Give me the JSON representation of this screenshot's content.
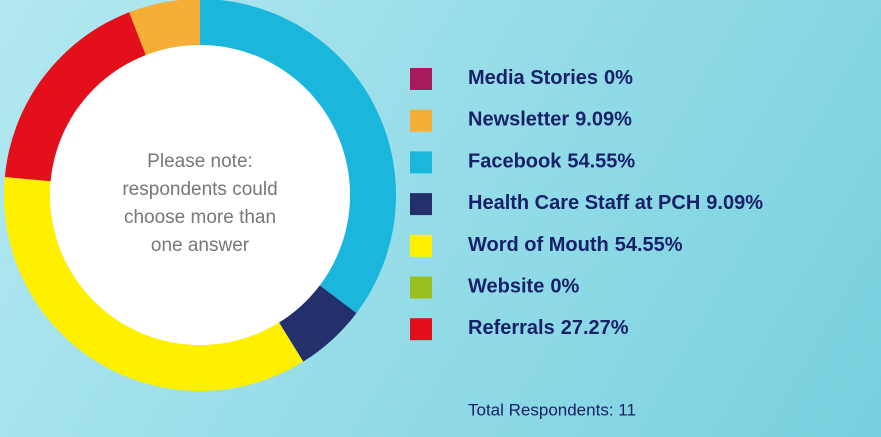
{
  "chart_data": {
    "type": "donut",
    "annotation": "Please note: respondents could choose more than one answer",
    "footnote": "Total Respondents: 11",
    "series": [
      {
        "name": "Media Stories",
        "color": "#a8195e",
        "value": 0,
        "value_label": "0%"
      },
      {
        "name": "Newsletter",
        "color": "#f6ae37",
        "value": 9.09,
        "value_label": "9.09%"
      },
      {
        "name": "Facebook",
        "color": "#1ab6dc",
        "value": 54.55,
        "value_label": "54.55%"
      },
      {
        "name": "Health Care Staff at PCH",
        "color": "#24306b",
        "value": 9.09,
        "value_label": "9.09%"
      },
      {
        "name": "Word of Mouth",
        "color": "#fff000",
        "value": 54.55,
        "value_label": "54.55%"
      },
      {
        "name": "Website",
        "color": "#97bf1d",
        "value": 0,
        "value_label": "0%"
      },
      {
        "name": "Referrals",
        "color": "#e3101b",
        "value": 27.27,
        "value_label": "27.27%"
      }
    ]
  }
}
